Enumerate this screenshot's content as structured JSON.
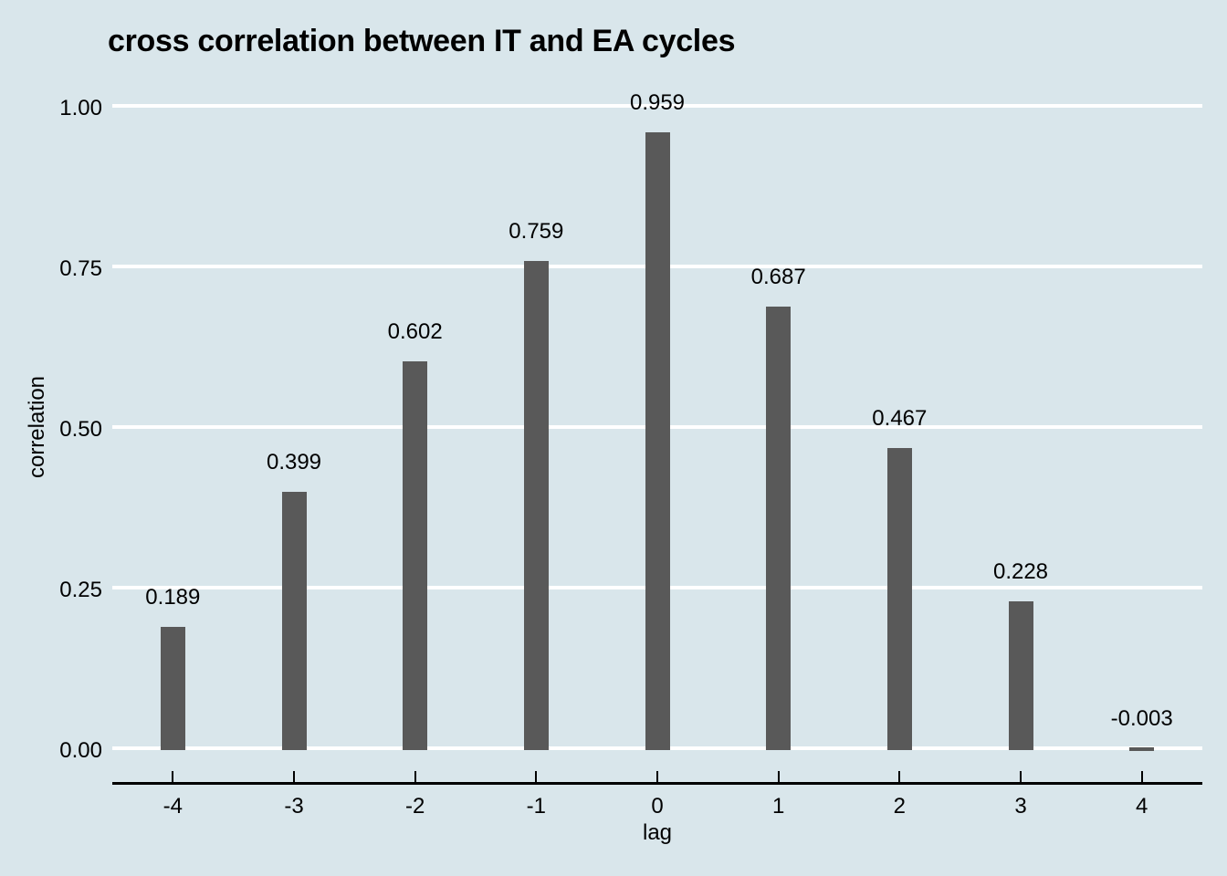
{
  "chart_data": {
    "type": "bar",
    "title": "cross correlation between IT and EA cycles",
    "xlabel": "lag",
    "ylabel": "correlation",
    "categories": [
      "-4",
      "-3",
      "-2",
      "-1",
      "0",
      "1",
      "2",
      "3",
      "4"
    ],
    "values": [
      0.189,
      0.399,
      0.602,
      0.759,
      0.959,
      0.687,
      0.467,
      0.228,
      -0.003
    ],
    "value_labels": [
      "0.189",
      "0.399",
      "0.602",
      "0.759",
      "0.959",
      "0.687",
      "0.467",
      "0.228",
      "-0.003"
    ],
    "ytick_values": [
      0,
      0.25,
      0.5,
      0.75,
      1.0
    ],
    "ytick_labels": [
      "0.00",
      "0.25",
      "0.50",
      "0.75",
      "1.00"
    ],
    "ylim": [
      0,
      1.0
    ],
    "grid": true,
    "legend": "none",
    "colors": {
      "background": "#d9e6eb",
      "bar": "#595959",
      "gridline": "#ffffff",
      "axis": "#000000",
      "text": "#000000"
    }
  }
}
